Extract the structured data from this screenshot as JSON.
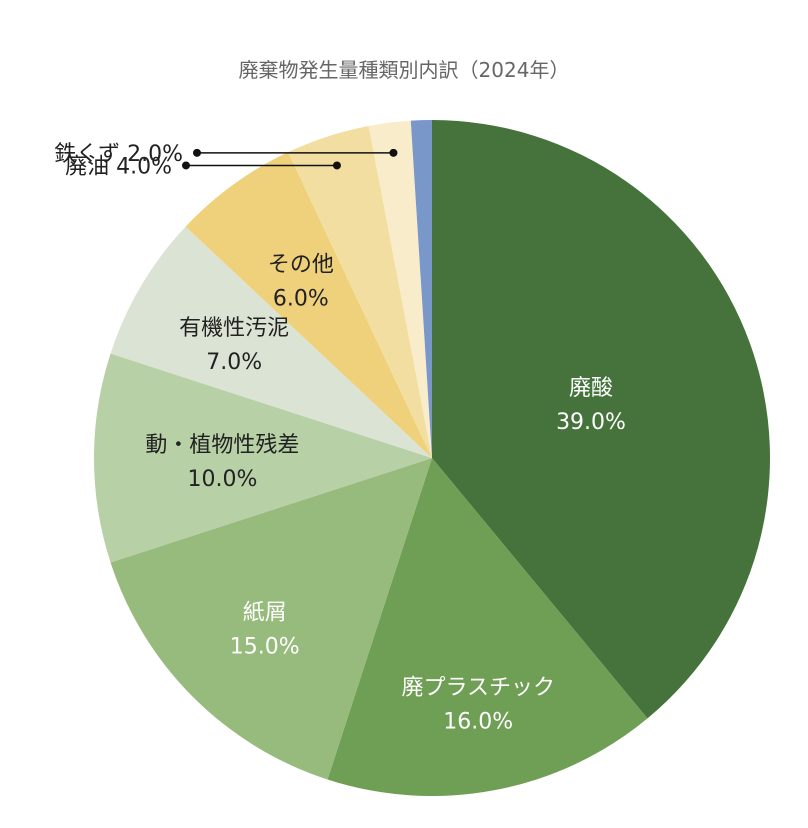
{
  "chart_data": {
    "type": "pie",
    "title": "廃棄物発生量種類別内訳（2024年）",
    "unit": "%",
    "slices": [
      {
        "category": "廃酸",
        "value": 39.0,
        "percent_label": "39.0%",
        "color": "#45733b",
        "text_color": "#ffffff"
      },
      {
        "category": "廃プラスチック",
        "value": 16.0,
        "percent_label": "16.0%",
        "color": "#6f9e55",
        "text_color": "#ffffff"
      },
      {
        "category": "紙屑",
        "value": 15.0,
        "percent_label": "15.0%",
        "color": "#97bb7c",
        "text_color": "#ffffff"
      },
      {
        "category": "動・植物性残差",
        "value": 10.0,
        "percent_label": "10.0%",
        "color": "#b7d0a6",
        "text_color": "#222222"
      },
      {
        "category": "有機性汚泥",
        "value": 7.0,
        "percent_label": "7.0%",
        "color": "#dbe4d4",
        "text_color": "#222222"
      },
      {
        "category": "その他",
        "value": 6.0,
        "percent_label": "6.0%",
        "color": "#efd17b",
        "text_color": "#222222"
      },
      {
        "category": "廃油",
        "value": 4.0,
        "percent_label": "4.0%",
        "color": "#f3dea1",
        "text_color": "#222222",
        "label_outside": true
      },
      {
        "category": "鉄くず",
        "value": 2.0,
        "percent_label": "2.0%",
        "color": "#f8ecca",
        "text_color": "#222222",
        "label_outside": true
      },
      {
        "category": "",
        "value": 1.0,
        "percent_label": "",
        "color": "#7a97c9",
        "text_color": "#222222"
      }
    ]
  }
}
